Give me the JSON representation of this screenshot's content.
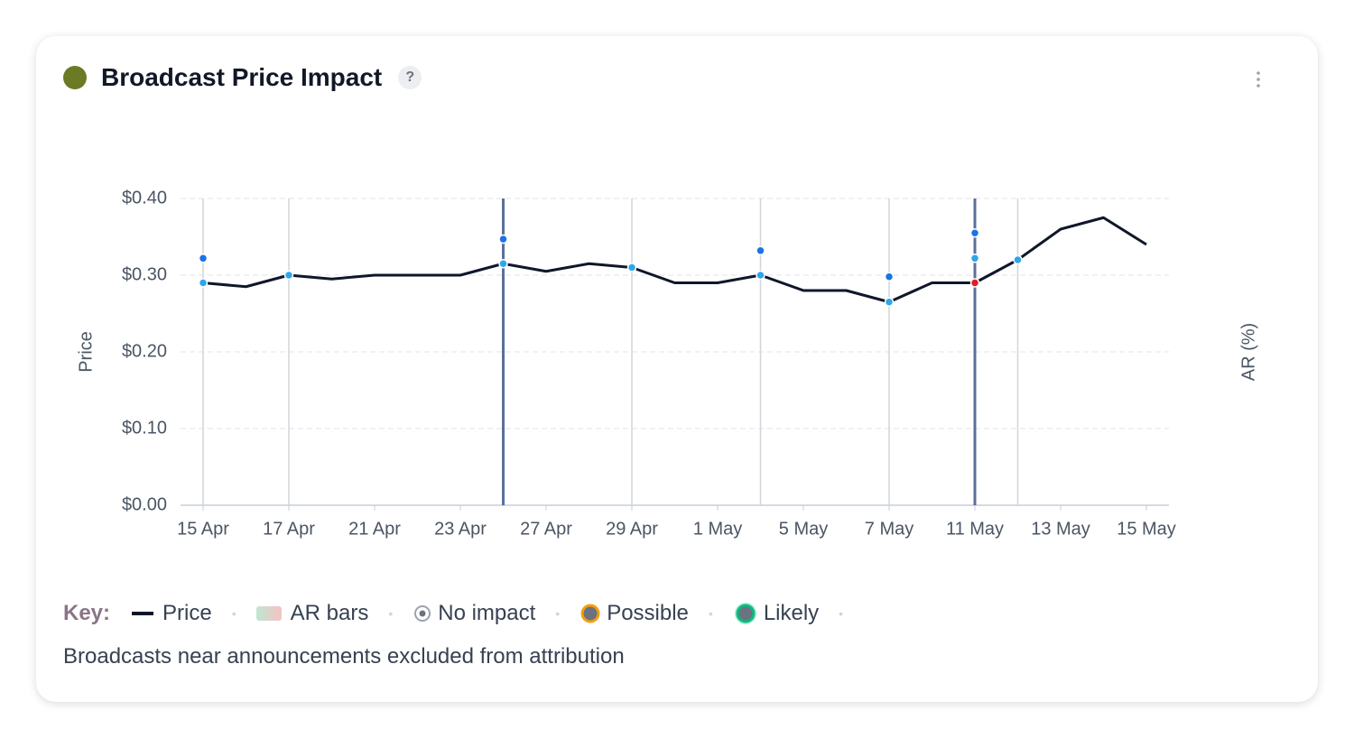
{
  "header": {
    "title": "Broadcast Price Impact",
    "help": "?"
  },
  "chart_data": {
    "type": "line",
    "y_label": "Price",
    "y2_label": "AR (%)",
    "categories": [
      "15 Apr",
      null,
      "17 Apr",
      null,
      "21 Apr",
      null,
      "23 Apr",
      null,
      "27 Apr",
      null,
      "29 Apr",
      null,
      "1 May",
      null,
      "5 May",
      null,
      "7 May",
      null,
      "11 May",
      null,
      "13 May",
      null,
      "15 May"
    ],
    "series": [
      {
        "name": "Price",
        "color": "#0f172a",
        "values": [
          0.29,
          0.285,
          0.3,
          0.295,
          0.3,
          0.3,
          0.3,
          0.315,
          0.305,
          0.315,
          0.31,
          0.29,
          0.29,
          0.3,
          0.28,
          0.28,
          0.265,
          0.29,
          0.29,
          0.32,
          0.36,
          0.375,
          0.34
        ]
      }
    ],
    "point_colors": [
      "#2ea6e8",
      null,
      "#2ea6e8",
      null,
      null,
      null,
      null,
      "#2ea6e8",
      null,
      null,
      "#2ea6e8",
      null,
      null,
      "#2ea6e8",
      null,
      null,
      "#2ea6e8",
      null,
      "#e11d2a",
      "#2ea6e8",
      null,
      null,
      null
    ],
    "markers": [
      {
        "color": "#1a73e8",
        "values": [
          0.322,
          null,
          null,
          null,
          null,
          null,
          null,
          0.347,
          null,
          null,
          null,
          null,
          null,
          0.332,
          null,
          null,
          0.298,
          null,
          0.355,
          null,
          null,
          null,
          null
        ]
      },
      {
        "color": "#2ea6e8",
        "values": [
          null,
          null,
          null,
          null,
          null,
          null,
          null,
          null,
          null,
          null,
          null,
          null,
          null,
          null,
          null,
          null,
          null,
          null,
          0.322,
          null,
          null,
          null,
          null
        ]
      }
    ],
    "vlines": [
      "#d1d5db",
      null,
      "#d1d5db",
      null,
      null,
      null,
      null,
      "#5b6f9a",
      null,
      null,
      "#d1d5db",
      null,
      null,
      "#d1d5db",
      null,
      null,
      "#d1d5db",
      null,
      "#5b6f9a",
      "#d1d5db",
      null,
      null,
      null
    ],
    "ylim": [
      0,
      0.4
    ],
    "yticks": [
      {
        "value": 0,
        "label": "$0.00"
      },
      {
        "value": 0.1,
        "label": "$0.10"
      },
      {
        "value": 0.2,
        "label": "$0.20"
      },
      {
        "value": 0.3,
        "label": "$0.30"
      },
      {
        "value": 0.4,
        "label": "$0.40"
      }
    ],
    "grid": true
  },
  "key": {
    "label": "Key:",
    "items": [
      "Price",
      "AR bars",
      "No impact",
      "Possible",
      "Likely"
    ]
  },
  "note": "Broadcasts near announcements excluded from attribution"
}
